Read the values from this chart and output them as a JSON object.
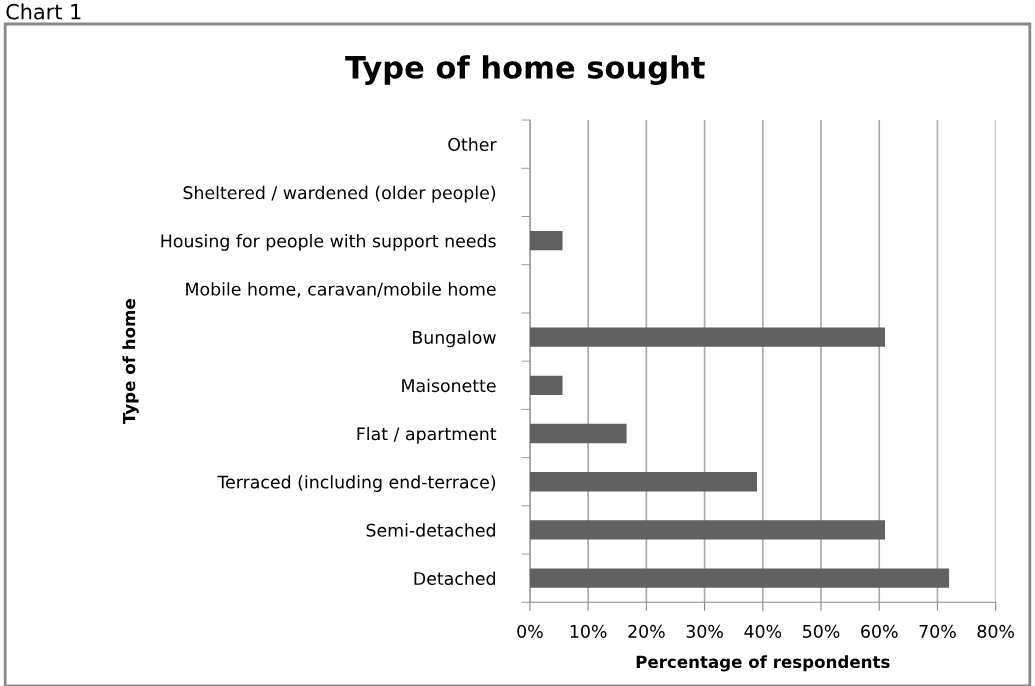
{
  "chart_data": {
    "type": "bar",
    "orientation": "horizontal",
    "title": "Type of home sought",
    "xlabel": "Percentage of respondents",
    "ylabel": "Type of home",
    "annotations": [
      "Chart 1"
    ],
    "categories": [
      "Other",
      "Sheltered / wardened (older people)",
      "Housing for people with support needs",
      "Mobile home, caravan/mobile home",
      "Bungalow",
      "Maisonette",
      "Flat / apartment",
      "Terraced (including end-terrace)",
      "Semi-detached",
      "Detached"
    ],
    "values": [
      0,
      0,
      5.6,
      0,
      61,
      5.6,
      16.6,
      39,
      61,
      72
    ],
    "color": "#616161",
    "xlim": [
      0,
      80
    ],
    "xticks": [
      {
        "value": 0,
        "label": "0%"
      },
      {
        "value": 10,
        "label": "10%"
      },
      {
        "value": 20,
        "label": "20%"
      },
      {
        "value": 30,
        "label": "30%"
      },
      {
        "value": 40,
        "label": "40%"
      },
      {
        "value": 50,
        "label": "50%"
      },
      {
        "value": 60,
        "label": "60%"
      },
      {
        "value": 70,
        "label": "70%"
      },
      {
        "value": 80,
        "label": "80%"
      }
    ],
    "grid": "x",
    "legend": false
  }
}
